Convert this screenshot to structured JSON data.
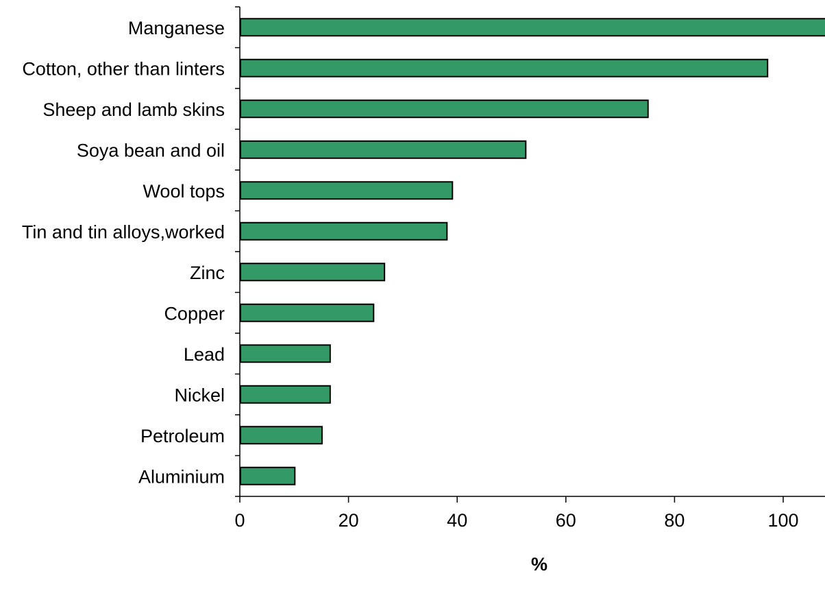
{
  "chart_data": {
    "type": "bar",
    "orientation": "horizontal",
    "categories": [
      "Manganese",
      "Cotton, other than linters",
      "Sheep and lamb skins",
      "Soya bean and oil",
      "Wool tops",
      "Tin and tin alloys,worked",
      "Zinc",
      "Copper",
      "Lead",
      "Nickel",
      "Petroleum",
      "Aluminium"
    ],
    "values": [
      108,
      97,
      75,
      52.5,
      39,
      38,
      26.5,
      24.5,
      16.5,
      16.5,
      15,
      10
    ],
    "xlabel": "%",
    "ylabel": "",
    "xlim": [
      0,
      108
    ],
    "x_ticks": [
      "0",
      "20",
      "40",
      "60",
      "80",
      "100"
    ],
    "grid": false,
    "legend": "none",
    "bar_color": "#339966",
    "bar_outline": "#000000"
  }
}
